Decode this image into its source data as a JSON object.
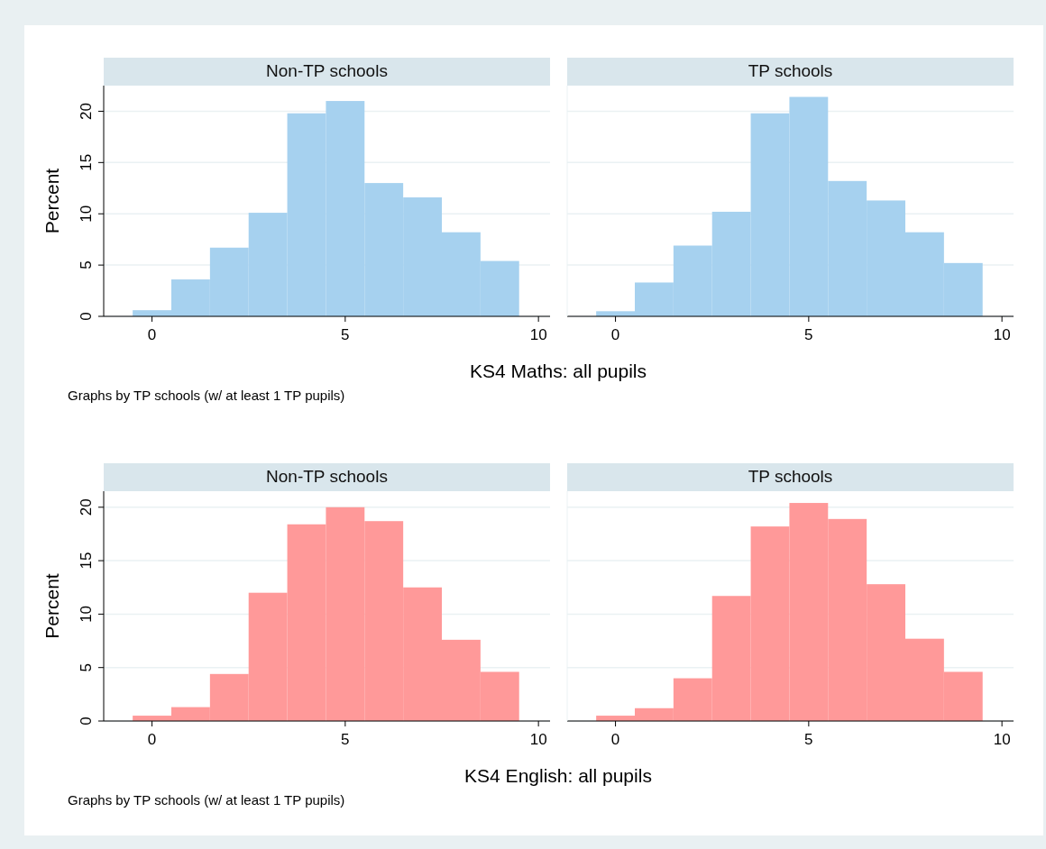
{
  "chart_data": [
    {
      "type": "histogram",
      "title": "Non-TP schools",
      "ylabel": "Percent",
      "xlabel": "KS4 Maths: all pupils",
      "annotations": [
        "Graphs by TP schools (w/ at least 1 TP pupils)"
      ],
      "bins": [
        -0.5,
        0.5,
        1.5,
        2.5,
        3.5,
        4.5,
        5.5,
        6.5,
        7.5,
        8.5,
        9.5
      ],
      "values": [
        0.6,
        3.6,
        6.7,
        10.1,
        19.8,
        21.0,
        13.0,
        11.6,
        8.2,
        5.4
      ],
      "color": "#a6d1ef",
      "xlim": [
        -1.25,
        10.3
      ],
      "xticks": [
        0,
        5,
        10
      ],
      "ylim": [
        0,
        22.5
      ],
      "yticks": [
        0,
        5,
        10,
        15,
        20
      ],
      "grid": "y"
    },
    {
      "type": "histogram",
      "title": "TP schools",
      "bins": [
        -0.5,
        0.5,
        1.5,
        2.5,
        3.5,
        4.5,
        5.5,
        6.5,
        7.5,
        8.5,
        9.5
      ],
      "values": [
        0.5,
        3.3,
        6.9,
        10.2,
        19.8,
        21.4,
        13.2,
        11.3,
        8.2,
        5.2
      ],
      "color": "#a6d1ef",
      "xlim": [
        -1.25,
        10.3
      ],
      "xticks": [
        0,
        5,
        10
      ],
      "ylim": [
        0,
        22.5
      ],
      "yticks": [
        0,
        5,
        10,
        15,
        20
      ],
      "grid": "y",
      "tick_labels": "x"
    },
    {
      "type": "histogram",
      "title": "Non-TP schools",
      "ylabel": "Percent",
      "xlabel": "KS4 English: all pupils",
      "annotations": [
        "Graphs by TP schools (w/ at least 1 TP pupils)"
      ],
      "bins": [
        -0.5,
        0.5,
        1.5,
        2.5,
        3.5,
        4.5,
        5.5,
        6.5,
        7.5,
        8.5,
        9.5
      ],
      "values": [
        0.5,
        1.3,
        4.4,
        12.0,
        18.4,
        20.0,
        18.7,
        12.5,
        7.6,
        4.6
      ],
      "color": "#ff9999",
      "xlim": [
        -1.25,
        10.3
      ],
      "xticks": [
        0,
        5,
        10
      ],
      "ylim": [
        0,
        21.5
      ],
      "yticks": [
        0,
        5,
        10,
        15,
        20
      ],
      "grid": "y"
    },
    {
      "type": "histogram",
      "title": "TP schools",
      "bins": [
        -0.5,
        0.5,
        1.5,
        2.5,
        3.5,
        4.5,
        5.5,
        6.5,
        7.5,
        8.5,
        9.5
      ],
      "values": [
        0.5,
        1.2,
        4.0,
        11.7,
        18.2,
        20.4,
        18.9,
        12.8,
        7.7,
        4.6
      ],
      "color": "#ff9999",
      "xlim": [
        -1.25,
        10.3
      ],
      "xticks": [
        0,
        5,
        10
      ],
      "ylim": [
        0,
        21.5
      ],
      "yticks": [
        0,
        5,
        10,
        15,
        20
      ],
      "grid": "y",
      "tick_labels": "x"
    }
  ]
}
